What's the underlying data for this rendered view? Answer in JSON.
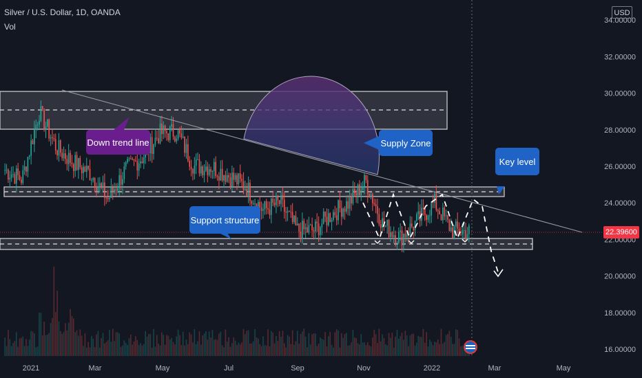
{
  "header": {
    "symbol": "Silver / U.S. Dollar, 1D, OANDA",
    "indicator": "Vol"
  },
  "currency_button": "USD",
  "last_price": "22.39600",
  "annotations": {
    "down_trend_line": "Down trend line",
    "supply_zone": "Supply Zone",
    "key_level": "Key level",
    "support_structure": "Support structure"
  },
  "colors": {
    "up": "#26a69a",
    "down": "#ef5350",
    "callout_blue": "#1e63c5",
    "callout_purple": "#6a1e8e",
    "price_line": "#f23645",
    "background": "#131722"
  },
  "chart_data": {
    "type": "line",
    "title": "Silver / U.S. Dollar, 1D, OANDA",
    "xlabel": "",
    "ylabel": "",
    "x_tick_labels": [
      "2021",
      "Mar",
      "May",
      "Jul",
      "Sep",
      "Nov",
      "2022",
      "Mar",
      "May"
    ],
    "y_tick_labels": [
      "16.00000",
      "18.00000",
      "20.00000",
      "22.00000",
      "24.00000",
      "26.00000",
      "28.00000",
      "30.00000",
      "32.00000",
      "34.00000"
    ],
    "ylim": [
      16,
      34.3
    ],
    "grid": false,
    "series": [
      {
        "values": [
          {
            "x": "2021-01",
            "y": 25.8
          },
          {
            "x": "2021-01-15",
            "y": 25.3
          },
          {
            "x": "2021-02-01",
            "y": 29.0
          },
          {
            "x": "2021-02-15",
            "y": 27.0
          },
          {
            "x": "2021-03-01",
            "y": 26.2
          },
          {
            "x": "2021-03-15",
            "y": 25.6
          },
          {
            "x": "2021-04-01",
            "y": 24.2
          },
          {
            "x": "2021-04-15",
            "y": 25.8
          },
          {
            "x": "2021-05-01",
            "y": 26.5
          },
          {
            "x": "2021-05-15",
            "y": 27.8
          },
          {
            "x": "2021-06-01",
            "y": 27.9
          },
          {
            "x": "2021-06-15",
            "y": 26.0
          },
          {
            "x": "2021-07-01",
            "y": 26.0
          },
          {
            "x": "2021-07-15",
            "y": 25.5
          },
          {
            "x": "2021-08-01",
            "y": 24.9
          },
          {
            "x": "2021-08-15",
            "y": 23.6
          },
          {
            "x": "2021-09-01",
            "y": 24.0
          },
          {
            "x": "2021-09-15",
            "y": 22.5
          },
          {
            "x": "2021-10-01",
            "y": 22.5
          },
          {
            "x": "2021-10-15",
            "y": 23.4
          },
          {
            "x": "2021-11-01",
            "y": 24.0
          },
          {
            "x": "2021-11-15",
            "y": 25.2
          },
          {
            "x": "2021-12-01",
            "y": 22.8
          },
          {
            "x": "2021-12-15",
            "y": 22.1
          },
          {
            "x": "2022-01-01",
            "y": 23.0
          },
          {
            "x": "2022-01-15",
            "y": 24.0
          },
          {
            "x": "2022-01-25",
            "y": 22.5
          },
          {
            "x": "2022-02-01",
            "y": 22.4
          }
        ]
      }
    ]
  }
}
